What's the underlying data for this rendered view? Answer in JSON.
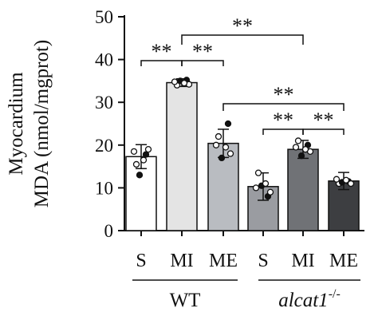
{
  "chart_data": {
    "type": "bar",
    "ylabel_line1": "Myocardium",
    "ylabel_line2": "MDA (nmol/mgprot)",
    "ylim": [
      0,
      50
    ],
    "yticks": [
      0,
      10,
      20,
      30,
      40,
      50
    ],
    "categories": [
      "S",
      "MI",
      "ME",
      "S",
      "MI",
      "ME"
    ],
    "groups": [
      {
        "label": "WT",
        "italic": false,
        "superscript": ""
      },
      {
        "label": "alcat1",
        "italic": true,
        "superscript": "-/-"
      }
    ],
    "bars": [
      {
        "group": 0,
        "category": "S",
        "mean": 17.3,
        "sd": 2.8,
        "color": "#ffffff",
        "points": [
          15.5,
          17.8,
          18.5,
          19.0,
          13.0,
          16.5
        ]
      },
      {
        "group": 0,
        "category": "MI",
        "mean": 34.6,
        "sd": 0.9,
        "color": "#e4e4e4",
        "points": [
          34.0,
          35.2,
          34.8,
          34.2,
          35.0,
          34.5
        ]
      },
      {
        "group": 0,
        "category": "ME",
        "mean": 20.4,
        "sd": 3.3,
        "color": "#b9bcc1",
        "points": [
          22.0,
          25.0,
          20.0,
          18.0,
          17.0,
          19.5
        ]
      },
      {
        "group": 1,
        "category": "S",
        "mean": 10.3,
        "sd": 3.2,
        "color": "#9a9ca1",
        "points": [
          13.5,
          8.0,
          10.0,
          9.0,
          10.5,
          11.0
        ]
      },
      {
        "group": 1,
        "category": "MI",
        "mean": 19.0,
        "sd": 2.1,
        "color": "#707276",
        "points": [
          21.0,
          20.0,
          19.5,
          18.5,
          17.5,
          19.0
        ]
      },
      {
        "group": 1,
        "category": "ME",
        "mean": 11.6,
        "sd": 2.0,
        "color": "#3d3e41",
        "points": [
          11.0,
          11.5,
          12.0,
          11.0,
          11.3,
          11.8
        ]
      }
    ],
    "significance": [
      {
        "from": 1,
        "to": 4,
        "label": "**"
      },
      {
        "from": 0,
        "to": 1,
        "label": "**"
      },
      {
        "from": 1,
        "to": 2,
        "label": "**"
      },
      {
        "from": 2,
        "to": 5,
        "label": "**"
      },
      {
        "from": 3,
        "to": 4,
        "label": "**"
      },
      {
        "from": 4,
        "to": 5,
        "label": "**"
      }
    ]
  }
}
